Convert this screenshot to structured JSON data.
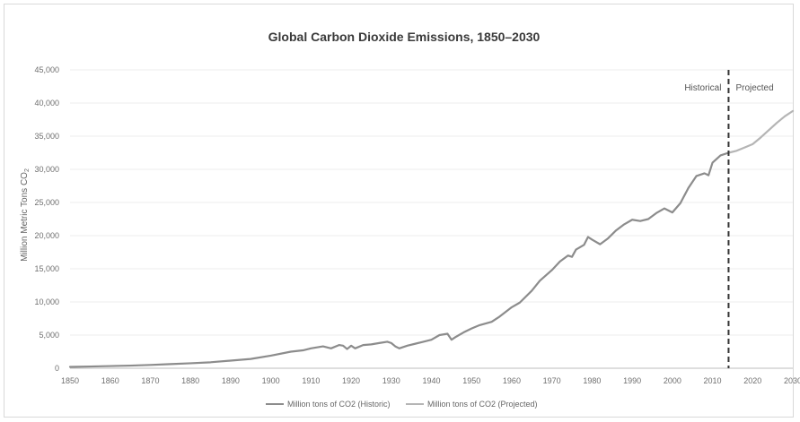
{
  "chart_data": {
    "type": "line",
    "title": "Global Carbon Dioxide Emissions, 1850–2030",
    "ylabel_main": "Million Metric Tons CO",
    "ylabel_sub": "2",
    "xlim": [
      1850,
      2030
    ],
    "ylim": [
      0,
      45000
    ],
    "x_ticks": [
      "1850",
      "1860",
      "1870",
      "1880",
      "1890",
      "1900",
      "1910",
      "1920",
      "1930",
      "1940",
      "1950",
      "1960",
      "1970",
      "1980",
      "1990",
      "2000",
      "2010",
      "2020",
      "2030"
    ],
    "y_ticks": [
      "0",
      "5,000",
      "10,000",
      "15,000",
      "20,000",
      "25,000",
      "30,000",
      "35,000",
      "40,000",
      "45,000"
    ],
    "grid": "horizontal",
    "legend_position": "bottom",
    "divider_year": 2014,
    "annotations": {
      "historical": "Historical",
      "projected": "Projected"
    },
    "series": [
      {
        "name": "Million tons of CO2 (Historic)",
        "color": "#8c8c8c",
        "x": [
          1850,
          1855,
          1860,
          1865,
          1870,
          1875,
          1880,
          1885,
          1890,
          1895,
          1900,
          1905,
          1908,
          1910,
          1912,
          1913,
          1915,
          1917,
          1918,
          1919,
          1920,
          1921,
          1923,
          1925,
          1927,
          1929,
          1930,
          1931,
          1932,
          1934,
          1936,
          1938,
          1940,
          1942,
          1944,
          1945,
          1946,
          1948,
          1950,
          1952,
          1955,
          1957,
          1960,
          1962,
          1965,
          1967,
          1970,
          1972,
          1974,
          1975,
          1976,
          1978,
          1979,
          1980,
          1982,
          1984,
          1986,
          1988,
          1990,
          1992,
          1994,
          1996,
          1998,
          2000,
          2002,
          2004,
          2006,
          2008,
          2009,
          2010,
          2012,
          2014
        ],
        "values": [
          200,
          260,
          330,
          400,
          500,
          620,
          750,
          900,
          1150,
          1400,
          1900,
          2500,
          2700,
          3000,
          3200,
          3300,
          3000,
          3500,
          3400,
          2900,
          3400,
          3000,
          3500,
          3600,
          3800,
          4000,
          3800,
          3300,
          3000,
          3400,
          3700,
          4000,
          4300,
          5000,
          5200,
          4300,
          4700,
          5400,
          6000,
          6500,
          7000,
          7800,
          9200,
          9900,
          11700,
          13200,
          14800,
          16100,
          17000,
          16800,
          17900,
          18600,
          19800,
          19400,
          18700,
          19600,
          20800,
          21700,
          22400,
          22200,
          22500,
          23400,
          24100,
          23500,
          24900,
          27200,
          29000,
          29400,
          29100,
          31000,
          32100,
          32500
        ]
      },
      {
        "name": "Million tons of CO2 (Projected)",
        "color": "#b5b5b5",
        "x": [
          2014,
          2016,
          2018,
          2020,
          2022,
          2024,
          2026,
          2028,
          2030
        ],
        "values": [
          32500,
          32800,
          33300,
          33800,
          34800,
          35900,
          37000,
          38000,
          38800
        ]
      }
    ]
  }
}
